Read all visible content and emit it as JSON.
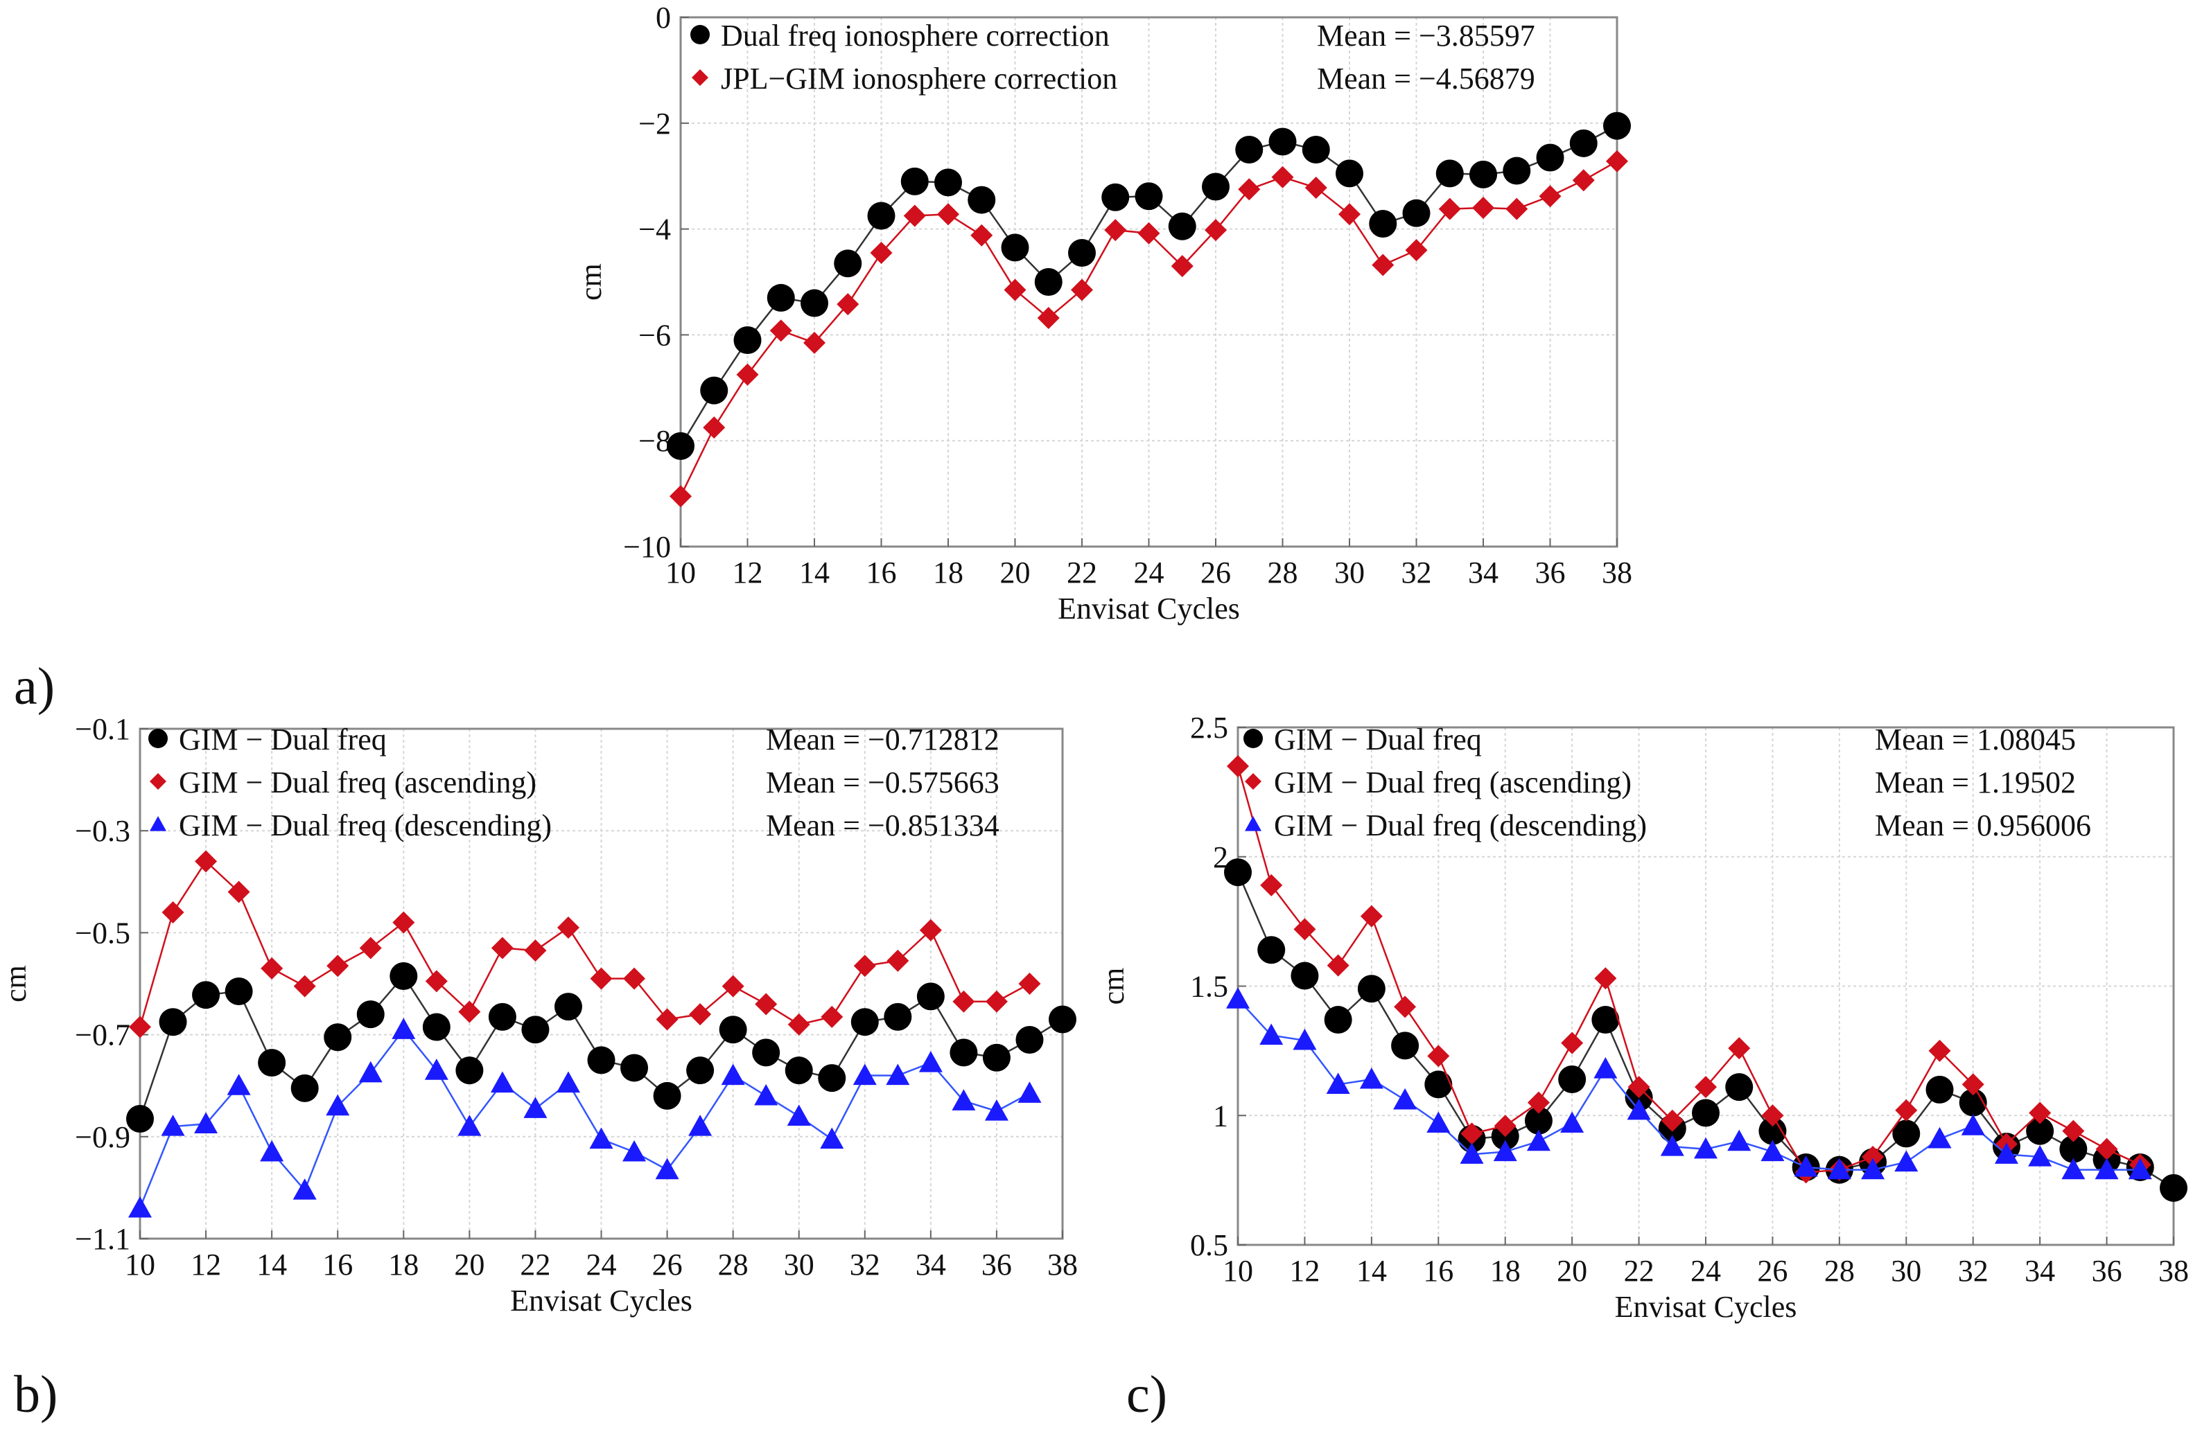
{
  "chart_data": [
    {
      "id": "a",
      "type": "line",
      "panel_label": "a)",
      "xlabel": "Envisat Cycles",
      "ylabel": "cm",
      "xlim": [
        10,
        38
      ],
      "ylim": [
        -10,
        0
      ],
      "xticks": [
        10,
        12,
        14,
        16,
        18,
        20,
        22,
        24,
        26,
        28,
        30,
        32,
        34,
        36,
        38
      ],
      "xtick_labels": [
        "10",
        "12",
        "14",
        "16",
        "18",
        "20",
        "22",
        "24",
        "26",
        "28",
        "30",
        "32",
        "34",
        "36",
        "38"
      ],
      "yticks": [
        -10,
        -8,
        -6,
        -4,
        -2,
        0
      ],
      "ytick_labels": [
        "−10",
        "−8",
        "−6",
        "−4",
        "−2",
        "0"
      ],
      "grid": true,
      "x": [
        10,
        11,
        12,
        13,
        14,
        15,
        16,
        17,
        18,
        19,
        20,
        21,
        22,
        23,
        24,
        25,
        26,
        27,
        28,
        29,
        30,
        31,
        32,
        33,
        34,
        35,
        36,
        37,
        38
      ],
      "series": [
        {
          "name": "Dual freq ionosphere correction",
          "mean_label": "Mean = −3.85597",
          "color": "#000000",
          "line_color": "#333333",
          "marker": "circle",
          "values": [
            -8.1,
            -7.05,
            -6.1,
            -5.3,
            -5.4,
            -4.65,
            -3.75,
            -3.1,
            -3.12,
            -3.45,
            -4.35,
            -5.0,
            -4.45,
            -3.4,
            -3.38,
            -3.95,
            -3.2,
            -2.5,
            -2.35,
            -2.5,
            -2.95,
            -3.9,
            -3.7,
            -2.95,
            -2.97,
            -2.9,
            -2.65,
            -2.38,
            -2.05
          ]
        },
        {
          "name": "JPL−GIM ionosphere correction",
          "mean_label": "Mean = −4.56879",
          "color": "#d0101c",
          "line_color": "#d0101c",
          "marker": "diamond",
          "values": [
            -9.05,
            -7.75,
            -6.75,
            -5.92,
            -6.15,
            -5.42,
            -4.45,
            -3.75,
            -3.72,
            -4.12,
            -5.15,
            -5.68,
            -5.15,
            -4.02,
            -4.08,
            -4.7,
            -4.02,
            -3.25,
            -3.02,
            -3.22,
            -3.72,
            -4.68,
            -4.4,
            -3.62,
            -3.6,
            -3.62,
            -3.38,
            -3.08,
            -2.72
          ]
        }
      ]
    },
    {
      "id": "b",
      "type": "line",
      "panel_label": "b)",
      "xlabel": "Envisat Cycles",
      "ylabel": "cm",
      "xlim": [
        10,
        38
      ],
      "ylim": [
        -1.1,
        -0.1
      ],
      "xticks": [
        10,
        12,
        14,
        16,
        18,
        20,
        22,
        24,
        26,
        28,
        30,
        32,
        34,
        36,
        38
      ],
      "xtick_labels": [
        "10",
        "12",
        "14",
        "16",
        "18",
        "20",
        "22",
        "24",
        "26",
        "28",
        "30",
        "32",
        "34",
        "36",
        "38"
      ],
      "yticks": [
        -1.1,
        -0.9,
        -0.7,
        -0.5,
        -0.3,
        -0.1
      ],
      "ytick_labels": [
        "−1.1",
        "−0.9",
        "−0.7",
        "−0.5",
        "−0.3",
        "−0.1"
      ],
      "grid": true,
      "x": [
        10,
        11,
        12,
        13,
        14,
        15,
        16,
        17,
        18,
        19,
        20,
        21,
        22,
        23,
        24,
        25,
        26,
        27,
        28,
        29,
        30,
        31,
        32,
        33,
        34,
        35,
        36,
        37,
        38
      ],
      "series": [
        {
          "name": "GIM − Dual freq",
          "mean_label": "Mean = −0.712812",
          "color": "#000000",
          "line_color": "#333333",
          "marker": "circle",
          "values": [
            -0.865,
            -0.675,
            -0.622,
            -0.615,
            -0.755,
            -0.805,
            -0.705,
            -0.66,
            -0.585,
            -0.685,
            -0.77,
            -0.665,
            -0.69,
            -0.645,
            -0.75,
            -0.765,
            -0.82,
            -0.77,
            -0.69,
            -0.735,
            -0.77,
            -0.785,
            -0.675,
            -0.665,
            -0.625,
            -0.735,
            -0.745,
            -0.71,
            -0.67
          ]
        },
        {
          "name": "GIM − Dual freq (ascending)",
          "mean_label": "Mean = −0.575663",
          "color": "#d0101c",
          "line_color": "#d0101c",
          "marker": "diamond",
          "values": [
            -0.685,
            -0.46,
            -0.36,
            -0.42,
            -0.57,
            -0.605,
            -0.565,
            -0.53,
            -0.48,
            -0.595,
            -0.655,
            -0.53,
            -0.535,
            -0.49,
            -0.59,
            -0.59,
            -0.67,
            -0.66,
            -0.605,
            -0.64,
            -0.68,
            -0.665,
            -0.565,
            -0.555,
            -0.495,
            -0.635,
            -0.635,
            -0.6,
            null
          ]
        },
        {
          "name": "GIM − Dual freq (descending)",
          "mean_label": "Mean = −0.851334",
          "color": "#1a1aff",
          "line_color": "#3355ff",
          "marker": "triangle",
          "values": [
            -1.04,
            -0.88,
            -0.875,
            -0.8,
            -0.93,
            -1.005,
            -0.84,
            -0.775,
            -0.69,
            -0.77,
            -0.88,
            -0.795,
            -0.845,
            -0.795,
            -0.905,
            -0.93,
            -0.965,
            -0.88,
            -0.78,
            -0.82,
            -0.86,
            -0.905,
            -0.78,
            -0.78,
            -0.755,
            -0.83,
            -0.85,
            -0.815,
            null
          ]
        }
      ]
    },
    {
      "id": "c",
      "type": "line",
      "panel_label": "c)",
      "xlabel": "Envisat Cycles",
      "ylabel": "cm",
      "xlim": [
        10,
        38
      ],
      "ylim": [
        0.5,
        2.5
      ],
      "xticks": [
        10,
        12,
        14,
        16,
        18,
        20,
        22,
        24,
        26,
        28,
        30,
        32,
        34,
        36,
        38
      ],
      "xtick_labels": [
        "10",
        "12",
        "14",
        "16",
        "18",
        "20",
        "22",
        "24",
        "26",
        "28",
        "30",
        "32",
        "34",
        "36",
        "38"
      ],
      "yticks": [
        0.5,
        1,
        1.5,
        2,
        2.5
      ],
      "ytick_labels": [
        "0.5",
        "1",
        "1.5",
        "2",
        "2.5"
      ],
      "grid": true,
      "x": [
        10,
        11,
        12,
        13,
        14,
        15,
        16,
        17,
        18,
        19,
        20,
        21,
        22,
        23,
        24,
        25,
        26,
        27,
        28,
        29,
        30,
        31,
        32,
        33,
        34,
        35,
        36,
        37,
        38
      ],
      "series": [
        {
          "name": "GIM − Dual freq",
          "mean_label": "Mean = 1.08045",
          "color": "#000000",
          "line_color": "#333333",
          "marker": "circle",
          "values": [
            1.94,
            1.64,
            1.54,
            1.37,
            1.49,
            1.27,
            1.12,
            0.91,
            0.92,
            0.98,
            1.14,
            1.37,
            1.07,
            0.95,
            1.01,
            1.11,
            0.94,
            0.8,
            0.79,
            0.82,
            0.93,
            1.1,
            1.05,
            0.88,
            0.94,
            0.87,
            0.83,
            0.8,
            0.72
          ]
        },
        {
          "name": "GIM − Dual freq (ascending)",
          "mean_label": "Mean = 1.19502",
          "color": "#d0101c",
          "line_color": "#d0101c",
          "marker": "diamond",
          "values": [
            2.35,
            1.89,
            1.72,
            1.58,
            1.77,
            1.42,
            1.23,
            0.93,
            0.96,
            1.05,
            1.28,
            1.53,
            1.11,
            0.98,
            1.11,
            1.26,
            1.0,
            0.78,
            0.79,
            0.84,
            1.02,
            1.25,
            1.12,
            0.89,
            1.01,
            0.94,
            0.87,
            0.81,
            null
          ]
        },
        {
          "name": "GIM − Dual freq (descending)",
          "mean_label": "Mean = 0.956006",
          "color": "#1a1aff",
          "line_color": "#3355ff",
          "marker": "triangle",
          "values": [
            1.45,
            1.31,
            1.29,
            1.12,
            1.14,
            1.06,
            0.97,
            0.85,
            0.86,
            0.9,
            0.97,
            1.18,
            1.02,
            0.88,
            0.87,
            0.9,
            0.86,
            0.8,
            0.79,
            0.79,
            0.82,
            0.91,
            0.96,
            0.85,
            0.84,
            0.79,
            0.79,
            0.79,
            null
          ]
        }
      ]
    }
  ]
}
